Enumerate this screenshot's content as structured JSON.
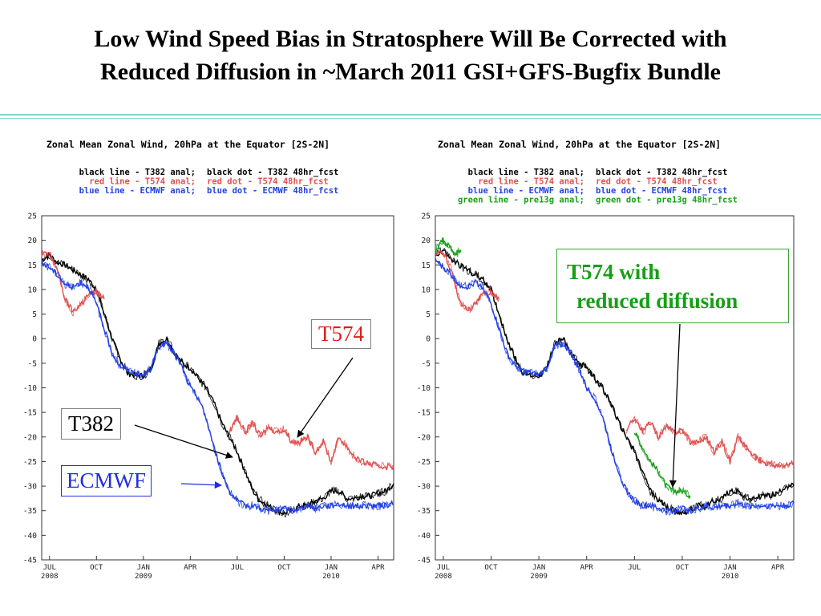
{
  "slide": {
    "title_lines": [
      "Low Wind Speed Bias in Stratosphere Will Be Corrected with",
      "Reduced Diffusion in ~March 2011 GSI+GFS-Bugfix Bundle"
    ]
  },
  "annotations": {
    "left_t574": "T574",
    "left_t382": "T382",
    "left_ecmwf": "ECMWF",
    "right_line1": "T574 with",
    "right_line2": "reduced diffusion"
  },
  "colors": {
    "black": "#000000",
    "red": "#e05050",
    "blue": "#2341e3",
    "green": "#1aa01a",
    "divider": "#7fd3ce"
  },
  "chart_data": [
    {
      "type": "line",
      "title": "Zonal Mean Zonal Wind, 20hPa at the Equator [2S-2N]",
      "legend": [
        [
          "black line - T382 anal;",
          "black dot - T382 48hr_fcst"
        ],
        [
          "red line - T574 anal;",
          "red dot - T574 48hr_fcst"
        ],
        [
          "blue line - ECMWF anal;",
          "blue dot - ECMWF 48hr_fcst"
        ]
      ],
      "legend_colors": [
        "black",
        "red",
        "blue"
      ],
      "x_range": [
        0,
        22.5
      ],
      "x_ticks": [
        {
          "pos": 0.5,
          "l1": "JUL",
          "l2": "2008"
        },
        {
          "pos": 3.5,
          "l1": "OCT",
          "l2": ""
        },
        {
          "pos": 6.5,
          "l1": "JAN",
          "l2": "2009"
        },
        {
          "pos": 9.5,
          "l1": "APR",
          "l2": ""
        },
        {
          "pos": 12.5,
          "l1": "JUL",
          "l2": ""
        },
        {
          "pos": 15.5,
          "l1": "OCT",
          "l2": ""
        },
        {
          "pos": 18.5,
          "l1": "JAN",
          "l2": "2010"
        },
        {
          "pos": 21.5,
          "l1": "APR",
          "l2": ""
        }
      ],
      "ylim": [
        -45,
        25
      ],
      "y_ticks": [
        25,
        20,
        15,
        10,
        5,
        0,
        -5,
        -10,
        -15,
        -20,
        -25,
        -30,
        -35,
        -40,
        -45
      ],
      "grid": false,
      "series": [
        {
          "color": "black",
          "x": [
            0,
            0.5,
            1,
            1.5,
            2,
            2.5,
            3,
            3.5,
            4,
            4.5,
            5,
            5.5,
            6,
            6.5,
            7,
            7.5,
            8,
            8.5,
            9,
            9.5,
            10,
            10.5,
            11,
            11.5,
            12,
            12.5,
            13,
            13.5,
            14,
            14.5,
            15,
            15.5,
            16,
            16.5,
            17,
            17.5,
            18,
            18.5,
            19,
            19.5,
            20,
            20.5,
            21,
            21.5,
            22,
            22.5
          ],
          "y": [
            16,
            17,
            15.5,
            15,
            14,
            13,
            12,
            10,
            5,
            0,
            -4,
            -7,
            -7.5,
            -7.5,
            -6,
            -1,
            0,
            -3,
            -5,
            -6,
            -8,
            -10,
            -13,
            -17,
            -20,
            -23,
            -27,
            -31,
            -33,
            -34,
            -35,
            -35.5,
            -35,
            -34,
            -34,
            -33,
            -32.5,
            -31,
            -31,
            -32.5,
            -32.5,
            -32,
            -32,
            -31.5,
            -31,
            -29.5
          ]
        },
        {
          "color": "red",
          "x": [
            0,
            0.5,
            1,
            1.5,
            2,
            2.5,
            3,
            3.5,
            4,
            4.5,
            5,
            5.5,
            6,
            6.5,
            7,
            7.5,
            8,
            8.5,
            9,
            9.5,
            10,
            10.5,
            11,
            11.5,
            12,
            12.5,
            13,
            13.5,
            14,
            14.5,
            15,
            15.5,
            16,
            16.5,
            17,
            17.5,
            18,
            18.5,
            19,
            19.5,
            20,
            20.5,
            21,
            21.5,
            22,
            22.5
          ],
          "y": [
            17,
            17.5,
            14,
            8,
            5.5,
            7,
            9,
            9.5,
            8,
            null,
            null,
            null,
            null,
            null,
            null,
            null,
            null,
            null,
            null,
            null,
            null,
            null,
            null,
            null,
            -19,
            -16,
            -19,
            -17,
            -20,
            -18,
            -19,
            -18.5,
            -21,
            -21,
            -20,
            -23,
            -21,
            -25,
            -20,
            -22,
            -24,
            -25,
            -25.5,
            -26,
            -26,
            -26
          ]
        },
        {
          "color": "blue",
          "x": [
            0,
            0.5,
            1,
            1.5,
            2,
            2.5,
            3,
            3.5,
            4,
            4.5,
            5,
            5.5,
            6,
            6.5,
            7,
            7.5,
            8,
            8.5,
            9,
            9.5,
            10,
            10.5,
            11,
            11.5,
            12,
            12.5,
            13,
            13.5,
            14,
            14.5,
            15,
            15.5,
            16,
            16.5,
            17,
            17.5,
            18,
            18.5,
            19,
            19.5,
            20,
            20.5,
            21,
            21.5,
            22,
            22.5
          ],
          "y": [
            15.5,
            14.5,
            13,
            11,
            10.5,
            11.5,
            10.5,
            7,
            2,
            -3,
            -5.5,
            -6.5,
            -7,
            -7.5,
            -6,
            -1.5,
            -1,
            -3,
            -6,
            -10,
            -12,
            -16,
            -22,
            -27,
            -31,
            -33,
            -34,
            -34,
            -34.5,
            -35,
            -35,
            -34.5,
            -35,
            -34.5,
            -34,
            -34.5,
            -34,
            -34,
            -33.5,
            -34,
            -34,
            -34,
            -34,
            -34,
            -34,
            -33.5
          ]
        }
      ]
    },
    {
      "type": "line",
      "title": "Zonal Mean Zonal Wind, 20hPa at the Equator [2S-2N]",
      "legend": [
        [
          "black line - T382 anal;",
          "black dot - T382 48hr_fcst"
        ],
        [
          "red line - T574 anal;",
          "red dot - T574 48hr_fcst"
        ],
        [
          "blue line - ECMWF anal;",
          "blue dot - ECMWF 48hr_fcst"
        ],
        [
          "green line - pre13g anal;",
          "green dot - pre13g 48hr_fcst"
        ]
      ],
      "legend_colors": [
        "black",
        "red",
        "blue",
        "green"
      ],
      "x_range": [
        0,
        22.5
      ],
      "x_ticks": [
        {
          "pos": 0.5,
          "l1": "JUL",
          "l2": "2008"
        },
        {
          "pos": 3.5,
          "l1": "OCT",
          "l2": ""
        },
        {
          "pos": 6.5,
          "l1": "JAN",
          "l2": "2009"
        },
        {
          "pos": 9.5,
          "l1": "APR",
          "l2": ""
        },
        {
          "pos": 12.5,
          "l1": "JUL",
          "l2": ""
        },
        {
          "pos": 15.5,
          "l1": "OCT",
          "l2": ""
        },
        {
          "pos": 18.5,
          "l1": "JAN",
          "l2": "2010"
        },
        {
          "pos": 21.5,
          "l1": "APR",
          "l2": ""
        }
      ],
      "ylim": [
        -45,
        25
      ],
      "y_ticks": [
        25,
        20,
        15,
        10,
        5,
        0,
        -5,
        -10,
        -15,
        -20,
        -25,
        -30,
        -35,
        -40,
        -45
      ],
      "grid": false,
      "series": [
        {
          "color": "black",
          "x": [
            0,
            0.5,
            1,
            1.5,
            2,
            2.5,
            3,
            3.5,
            4,
            4.5,
            5,
            5.5,
            6,
            6.5,
            7,
            7.5,
            8,
            8.5,
            9,
            9.5,
            10,
            10.5,
            11,
            11.5,
            12,
            12.5,
            13,
            13.5,
            14,
            14.5,
            15,
            15.5,
            16,
            16.5,
            17,
            17.5,
            18,
            18.5,
            19,
            19.5,
            20,
            20.5,
            21,
            21.5,
            22,
            22.5
          ],
          "y": [
            17,
            18,
            16,
            15,
            14,
            13,
            12,
            10,
            5,
            0,
            -4,
            -7,
            -7.5,
            -7.5,
            -6,
            -1,
            0,
            -3,
            -5,
            -6,
            -8,
            -10,
            -13,
            -17,
            -20,
            -23,
            -27,
            -31,
            -33,
            -34,
            -35,
            -35.5,
            -35,
            -34,
            -34,
            -33,
            -32.5,
            -31,
            -31,
            -32.5,
            -32.5,
            -32,
            -32,
            -31.5,
            -30,
            -30
          ]
        },
        {
          "color": "red",
          "x": [
            0,
            0.5,
            1,
            1.5,
            2,
            2.5,
            3,
            3.5,
            4,
            4.5,
            5,
            5.5,
            6,
            6.5,
            7,
            7.5,
            8,
            8.5,
            9,
            9.5,
            10,
            10.5,
            11,
            11.5,
            12,
            12.5,
            13,
            13.5,
            14,
            14.5,
            15,
            15.5,
            16,
            16.5,
            17,
            17.5,
            18,
            18.5,
            19,
            19.5,
            20,
            20.5,
            21,
            21.5,
            22,
            22.5
          ],
          "y": [
            17,
            17.5,
            14,
            8,
            5.5,
            7,
            9,
            9.5,
            8,
            null,
            null,
            null,
            null,
            null,
            null,
            null,
            null,
            null,
            null,
            null,
            null,
            null,
            null,
            null,
            -19,
            -16,
            -19,
            -17,
            -20,
            -18,
            -19,
            -18.5,
            -21,
            -21,
            -20,
            -23,
            -21,
            -25,
            -20,
            -22,
            -24,
            -25,
            -25.5,
            -26,
            -26,
            -25
          ]
        },
        {
          "color": "blue",
          "x": [
            0,
            0.5,
            1,
            1.5,
            2,
            2.5,
            3,
            3.5,
            4,
            4.5,
            5,
            5.5,
            6,
            6.5,
            7,
            7.5,
            8,
            8.5,
            9,
            9.5,
            10,
            10.5,
            11,
            11.5,
            12,
            12.5,
            13,
            13.5,
            14,
            14.5,
            15,
            15.5,
            16,
            16.5,
            17,
            17.5,
            18,
            18.5,
            19,
            19.5,
            20,
            20.5,
            21,
            21.5,
            22,
            22.5
          ],
          "y": [
            16,
            14.5,
            13,
            11,
            10.5,
            11.5,
            10.5,
            7,
            2,
            -3,
            -5.5,
            -6.5,
            -7,
            -7.5,
            -6,
            -1.5,
            -1,
            -3,
            -6,
            -10,
            -12,
            -16,
            -22,
            -27,
            -31,
            -33,
            -34,
            -34,
            -34.5,
            -35,
            -35,
            -34.5,
            -35,
            -34.5,
            -34,
            -34.5,
            -34,
            -34,
            -33.5,
            -34,
            -34,
            -34,
            -34,
            -34,
            -34,
            -33.5
          ]
        },
        {
          "color": "green",
          "x": [
            0,
            0.4,
            0.8,
            1.2,
            1.6
          ],
          "y": [
            18,
            20,
            19,
            17,
            18
          ]
        },
        {
          "color": "green",
          "x": [
            12.5,
            13,
            13.5,
            14,
            14.5,
            15,
            15.5,
            16
          ],
          "y": [
            -19,
            -22,
            -25,
            -27,
            -30,
            -31,
            -31,
            -32
          ]
        }
      ]
    }
  ]
}
